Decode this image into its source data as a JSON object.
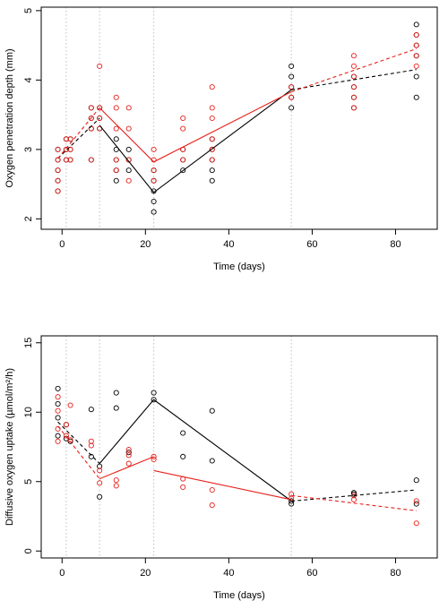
{
  "colors": {
    "black": "#000000",
    "red": "#e8211c",
    "vline": "#bfbfbf"
  },
  "chart_data": [
    {
      "type": "scatter",
      "xlabel": "Time (days)",
      "ylabel": "Oxygen penetration depth (mm)",
      "xlim": [
        -5,
        90
      ],
      "ylim": [
        1.85,
        5.05
      ],
      "xticks": [
        0,
        20,
        40,
        60,
        80
      ],
      "yticks": [
        2,
        3,
        4,
        5
      ],
      "vlines": [
        1,
        9,
        22,
        55
      ],
      "series": [
        {
          "color": "black",
          "points": [
            [
              -1,
              2.4
            ],
            [
              -1,
              2.55
            ],
            [
              -1,
              2.7
            ],
            [
              -1,
              2.85
            ],
            [
              -1,
              3.0
            ],
            [
              1,
              2.85
            ],
            [
              1,
              3.0
            ],
            [
              1,
              3.15
            ],
            [
              2,
              2.85
            ],
            [
              2,
              3.0
            ],
            [
              2,
              3.15
            ],
            [
              7,
              2.85
            ],
            [
              7,
              3.3
            ],
            [
              7,
              3.45
            ],
            [
              7,
              3.6
            ],
            [
              9,
              3.3
            ],
            [
              9,
              3.45
            ],
            [
              9,
              3.6
            ],
            [
              13,
              2.55
            ],
            [
              13,
              2.7
            ],
            [
              13,
              2.85
            ],
            [
              13,
              3.0
            ],
            [
              13,
              3.15
            ],
            [
              16,
              2.7
            ],
            [
              16,
              2.85
            ],
            [
              16,
              3.0
            ],
            [
              22,
              2.1
            ],
            [
              22,
              2.25
            ],
            [
              22,
              2.4
            ],
            [
              22,
              2.55
            ],
            [
              22,
              2.7
            ],
            [
              29,
              2.7
            ],
            [
              29,
              2.85
            ],
            [
              29,
              3.0
            ],
            [
              36,
              2.55
            ],
            [
              36,
              2.7
            ],
            [
              36,
              2.85
            ],
            [
              36,
              3.0
            ],
            [
              36,
              3.15
            ],
            [
              55,
              3.6
            ],
            [
              55,
              3.75
            ],
            [
              55,
              3.9
            ],
            [
              55,
              4.05
            ],
            [
              55,
              4.2
            ],
            [
              70,
              3.6
            ],
            [
              70,
              3.75
            ],
            [
              70,
              3.9
            ],
            [
              70,
              4.05
            ],
            [
              85,
              3.75
            ],
            [
              85,
              4.05
            ],
            [
              85,
              4.35
            ],
            [
              85,
              4.5
            ],
            [
              85,
              4.65
            ],
            [
              85,
              4.8
            ]
          ]
        },
        {
          "color": "red",
          "points": [
            [
              -1,
              2.4
            ],
            [
              -1,
              2.55
            ],
            [
              -1,
              2.7
            ],
            [
              -1,
              2.85
            ],
            [
              -1,
              3.0
            ],
            [
              1,
              2.85
            ],
            [
              1,
              3.0
            ],
            [
              1,
              3.15
            ],
            [
              2,
              2.85
            ],
            [
              2,
              3.0
            ],
            [
              2,
              3.15
            ],
            [
              7,
              2.85
            ],
            [
              7,
              3.3
            ],
            [
              7,
              3.45
            ],
            [
              7,
              3.6
            ],
            [
              9,
              3.3
            ],
            [
              9,
              3.45
            ],
            [
              9,
              3.6
            ],
            [
              9,
              4.2
            ],
            [
              13,
              2.7
            ],
            [
              13,
              2.85
            ],
            [
              13,
              3.3
            ],
            [
              13,
              3.6
            ],
            [
              13,
              3.75
            ],
            [
              16,
              2.55
            ],
            [
              16,
              2.85
            ],
            [
              16,
              3.3
            ],
            [
              16,
              3.6
            ],
            [
              22,
              2.55
            ],
            [
              22,
              2.7
            ],
            [
              22,
              2.85
            ],
            [
              22,
              3.0
            ],
            [
              29,
              2.85
            ],
            [
              29,
              3.0
            ],
            [
              29,
              3.3
            ],
            [
              29,
              3.45
            ],
            [
              36,
              2.85
            ],
            [
              36,
              3.0
            ],
            [
              36,
              3.15
            ],
            [
              36,
              3.45
            ],
            [
              36,
              3.6
            ],
            [
              36,
              3.9
            ],
            [
              55,
              3.75
            ],
            [
              55,
              3.9
            ],
            [
              70,
              3.6
            ],
            [
              70,
              3.75
            ],
            [
              70,
              3.9
            ],
            [
              70,
              4.05
            ],
            [
              70,
              4.2
            ],
            [
              70,
              4.35
            ],
            [
              85,
              4.2
            ],
            [
              85,
              4.35
            ],
            [
              85,
              4.5
            ],
            [
              85,
              4.65
            ]
          ]
        }
      ],
      "lines": [
        {
          "color": "black",
          "dashed": true,
          "points": [
            [
              -1,
              2.87
            ],
            [
              9,
              3.45
            ]
          ]
        },
        {
          "color": "black",
          "dashed": false,
          "points": [
            [
              9,
              3.35
            ],
            [
              22,
              2.38
            ],
            [
              55,
              3.86
            ]
          ]
        },
        {
          "color": "black",
          "dashed": true,
          "points": [
            [
              55,
              3.86
            ],
            [
              85,
              4.15
            ]
          ]
        },
        {
          "color": "red",
          "dashed": true,
          "points": [
            [
              -1,
              2.87
            ],
            [
              9,
              3.6
            ]
          ]
        },
        {
          "color": "red",
          "dashed": false,
          "points": [
            [
              9,
              3.6
            ],
            [
              22,
              2.82
            ],
            [
              55,
              3.83
            ]
          ]
        },
        {
          "color": "red",
          "dashed": true,
          "points": [
            [
              55,
              3.83
            ],
            [
              85,
              4.45
            ]
          ]
        }
      ]
    },
    {
      "type": "scatter",
      "xlabel": "Time (days)",
      "ylabel": "Diffusive oxygen uptake (µmol/m²/h)",
      "xlim": [
        -5,
        90
      ],
      "ylim": [
        -0.5,
        15.5
      ],
      "xticks": [
        0,
        20,
        40,
        60,
        80
      ],
      "yticks": [
        0,
        5,
        10,
        15
      ],
      "vlines": [
        1,
        9,
        22,
        55
      ],
      "series": [
        {
          "color": "black",
          "points": [
            [
              -1,
              11.7
            ],
            [
              -1,
              10.6
            ],
            [
              -1,
              9.6
            ],
            [
              -1,
              8.3
            ],
            [
              1,
              9.1
            ],
            [
              1,
              8.1
            ],
            [
              2,
              7.9
            ],
            [
              7,
              10.2
            ],
            [
              7,
              6.8
            ],
            [
              9,
              6.1
            ],
            [
              9,
              3.9
            ],
            [
              13,
              11.4
            ],
            [
              13,
              10.3
            ],
            [
              16,
              7.1
            ],
            [
              22,
              11.4
            ],
            [
              22,
              10.9
            ],
            [
              29,
              8.5
            ],
            [
              29,
              6.8
            ],
            [
              36,
              10.1
            ],
            [
              36,
              6.5
            ],
            [
              55,
              3.4
            ],
            [
              55,
              3.6
            ],
            [
              70,
              4.2
            ],
            [
              70,
              4.1
            ],
            [
              85,
              5.1
            ],
            [
              85,
              3.4
            ]
          ]
        },
        {
          "color": "red",
          "points": [
            [
              -1,
              11.1
            ],
            [
              -1,
              10.1
            ],
            [
              -1,
              8.8
            ],
            [
              -1,
              7.9
            ],
            [
              1,
              9.1
            ],
            [
              1,
              8.3
            ],
            [
              2,
              10.5
            ],
            [
              2,
              8.0
            ],
            [
              7,
              7.9
            ],
            [
              7,
              7.6
            ],
            [
              9,
              5.8
            ],
            [
              9,
              4.9
            ],
            [
              13,
              5.1
            ],
            [
              13,
              4.7
            ],
            [
              16,
              7.3
            ],
            [
              16,
              6.9
            ],
            [
              16,
              6.3
            ],
            [
              22,
              6.8
            ],
            [
              22,
              6.6
            ],
            [
              29,
              5.2
            ],
            [
              29,
              4.6
            ],
            [
              36,
              4.4
            ],
            [
              36,
              3.3
            ],
            [
              55,
              4.1
            ],
            [
              55,
              3.8
            ],
            [
              70,
              4.0
            ],
            [
              70,
              3.7
            ],
            [
              85,
              3.6
            ],
            [
              85,
              2.0
            ]
          ]
        }
      ],
      "lines": [
        {
          "color": "black",
          "dashed": true,
          "points": [
            [
              -1,
              9.3
            ],
            [
              9,
              6.3
            ]
          ]
        },
        {
          "color": "black",
          "dashed": false,
          "points": [
            [
              9,
              6.3
            ],
            [
              22,
              10.9
            ],
            [
              55,
              3.6
            ]
          ]
        },
        {
          "color": "black",
          "dashed": true,
          "points": [
            [
              55,
              3.6
            ],
            [
              85,
              4.4
            ]
          ]
        },
        {
          "color": "red",
          "dashed": true,
          "points": [
            [
              -1,
              9.0
            ],
            [
              9,
              5.2
            ]
          ]
        },
        {
          "color": "red",
          "dashed": false,
          "points": [
            [
              9,
              5.2
            ],
            [
              22,
              6.8
            ]
          ]
        },
        {
          "color": "red",
          "dashed": false,
          "points": [
            [
              22,
              5.8
            ],
            [
              55,
              3.7
            ]
          ]
        },
        {
          "color": "red",
          "dashed": true,
          "points": [
            [
              55,
              4.0
            ],
            [
              85,
              2.9
            ]
          ]
        }
      ]
    }
  ]
}
